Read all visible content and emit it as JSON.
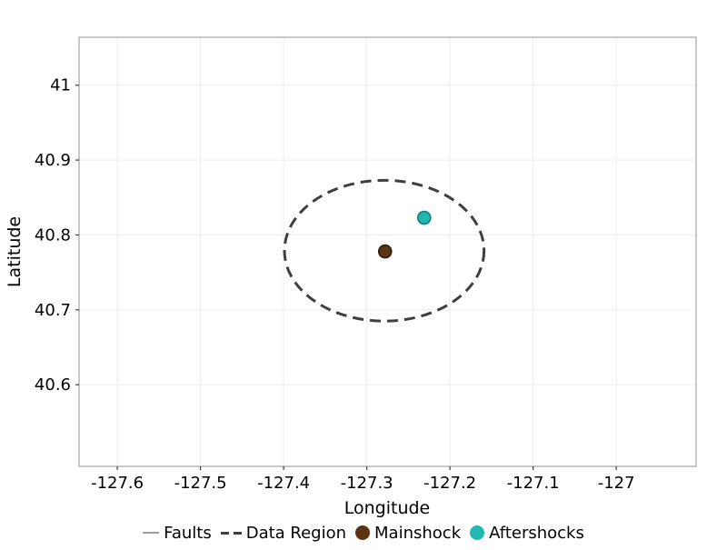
{
  "figure": {
    "background_color": "#ffffff",
    "frame_color": "#ababab",
    "gridline_color": "#ededed",
    "tick_mark_color": "#3f3f3f",
    "text_color": "#000000"
  },
  "legend": {
    "items": [
      {
        "label": "Faults",
        "glyph": "line",
        "color": "#9c9c9c"
      },
      {
        "label": "Data Region",
        "glyph": "dashes",
        "color": "#3f3f3f"
      },
      {
        "label": "Mainshock",
        "glyph": "dot",
        "color": "#5b3413"
      },
      {
        "label": "Aftershocks",
        "glyph": "dot",
        "color": "#22b8b1"
      }
    ]
  },
  "chart_data": {
    "type": "scatter",
    "title": "",
    "xlabel": "Longitude",
    "ylabel": "Latitude",
    "xlim": [
      -127.646,
      -126.904
    ],
    "ylim": [
      40.491,
      41.064
    ],
    "grid": true,
    "legend_position": "bottom",
    "xticks": {
      "values": [
        -127.6,
        -127.5,
        -127.4,
        -127.3,
        -127.2,
        -127.1,
        -127.0
      ],
      "labels": [
        "-127.6",
        "-127.5",
        "-127.4",
        "-127.3",
        "-127.2",
        "-127.1",
        "-127"
      ]
    },
    "yticks": {
      "values": [
        41.0,
        40.9,
        40.8,
        40.7,
        40.6
      ],
      "labels": [
        "41",
        "40.9",
        "40.8",
        "40.7",
        "40.6"
      ]
    },
    "series": [
      {
        "name": "Faults",
        "type": "line",
        "color": "#9c9c9c",
        "points": []
      },
      {
        "name": "Data Region",
        "type": "ellipse_outline",
        "style": "dashed",
        "color": "#3f3f3f",
        "center": [
          -127.279,
          40.779
        ],
        "radius_lon": 0.12,
        "radius_lat": 0.094
      },
      {
        "name": "Mainshock",
        "type": "scatter",
        "marker": "circle",
        "fill": "#5b3413",
        "stroke": "#2f1c08",
        "points": [
          [
            -127.278,
            40.778
          ]
        ]
      },
      {
        "name": "Aftershocks",
        "type": "scatter",
        "marker": "circle",
        "fill": "#22b8b1",
        "stroke": "#0e7f7a",
        "points": [
          [
            -127.231,
            40.823
          ]
        ]
      }
    ]
  }
}
